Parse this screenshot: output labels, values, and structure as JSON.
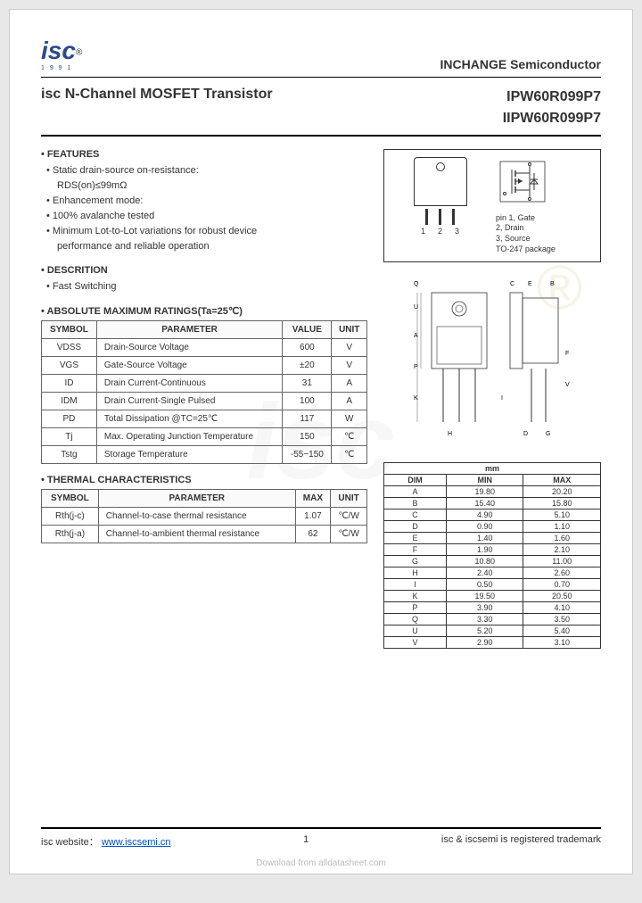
{
  "logo": {
    "text": "isc",
    "reg": "®",
    "year": "1 9 9 1"
  },
  "header_right": "INCHANGE Semiconductor",
  "title_left": "isc N-Channel MOSFET Transistor",
  "part_no_1": "IPW60R099P7",
  "part_no_2": "IIPW60R099P7",
  "features": {
    "heading": "• FEATURES",
    "items": [
      "• Static drain-source on-resistance:",
      "RDS(on)≤99mΩ",
      "• Enhancement mode:",
      "• 100% avalanche tested",
      "• Minimum Lot-to-Lot variations for robust device",
      "performance and reliable operation"
    ]
  },
  "description": {
    "heading": "• DESCRITION",
    "item": "• Fast Switching"
  },
  "abs_max": {
    "heading": "• ABSOLUTE MAXIMUM RATINGS(Ta=25℃)",
    "cols": [
      "SYMBOL",
      "PARAMETER",
      "VALUE",
      "UNIT"
    ],
    "rows": [
      {
        "sym": "VDSS",
        "param": "Drain-Source Voltage",
        "val": "600",
        "unit": "V"
      },
      {
        "sym": "VGS",
        "param": "Gate-Source Voltage",
        "val": "±20",
        "unit": "V"
      },
      {
        "sym": "ID",
        "param": "Drain Current-Continuous",
        "val": "31",
        "unit": "A"
      },
      {
        "sym": "IDM",
        "param": "Drain Current-Single Pulsed",
        "val": "100",
        "unit": "A"
      },
      {
        "sym": "PD",
        "param": "Total Dissipation @TC=25℃",
        "val": "117",
        "unit": "W"
      },
      {
        "sym": "Tj",
        "param": "Max. Operating Junction Temperature",
        "val": "150",
        "unit": "℃"
      },
      {
        "sym": "Tstg",
        "param": "Storage Temperature",
        "val": "-55~150",
        "unit": "℃"
      }
    ]
  },
  "thermal": {
    "heading": "• THERMAL CHARACTERISTICS",
    "cols": [
      "SYMBOL",
      "PARAMETER",
      "MAX",
      "UNIT"
    ],
    "rows": [
      {
        "sym": "Rth(j-c)",
        "param": "Channel-to-case thermal resistance",
        "val": "1.07",
        "unit": "℃/W"
      },
      {
        "sym": "Rth(j-a)",
        "param": "Channel-to-ambient thermal resistance",
        "val": "62",
        "unit": "℃/W"
      }
    ]
  },
  "pkg": {
    "pin_numbers": [
      "1",
      "2",
      "3"
    ],
    "pin_list": "pin 1, Gate\n2, Drain\n3, Source",
    "pkg_name": "TO-247 package"
  },
  "dim_table": {
    "header_unit": "mm",
    "cols": [
      "DIM",
      "MIN",
      "MAX"
    ],
    "rows": [
      [
        "A",
        "19.80",
        "20.20"
      ],
      [
        "B",
        "15.40",
        "15.80"
      ],
      [
        "C",
        "4.90",
        "5.10"
      ],
      [
        "D",
        "0.90",
        "1.10"
      ],
      [
        "E",
        "1.40",
        "1.60"
      ],
      [
        "F",
        "1.90",
        "2.10"
      ],
      [
        "G",
        "10.80",
        "11.00"
      ],
      [
        "H",
        "2.40",
        "2.60"
      ],
      [
        "I",
        "0.50",
        "0.70"
      ],
      [
        "K",
        "19.50",
        "20.50"
      ],
      [
        "P",
        "3.90",
        "4.10"
      ],
      [
        "Q",
        "3.30",
        "3.50"
      ],
      [
        "U",
        "5.20",
        "5.40"
      ],
      [
        "V",
        "2.90",
        "3.10"
      ]
    ]
  },
  "dim_labels": [
    "Q",
    "U",
    "A",
    "P",
    "K",
    "H",
    "C",
    "E",
    "B",
    "F",
    "V",
    "D",
    "G",
    "I"
  ],
  "footer": {
    "left_label": "isc website：",
    "url": "www.iscsemi.cn",
    "page": "1",
    "right": "isc & iscsemi is registered trademark"
  },
  "download_note": "Download from alldatasheet.com",
  "colors": {
    "logo": "#2b4a8a",
    "link": "#0050c8",
    "border": "#666666",
    "text": "#333333"
  }
}
